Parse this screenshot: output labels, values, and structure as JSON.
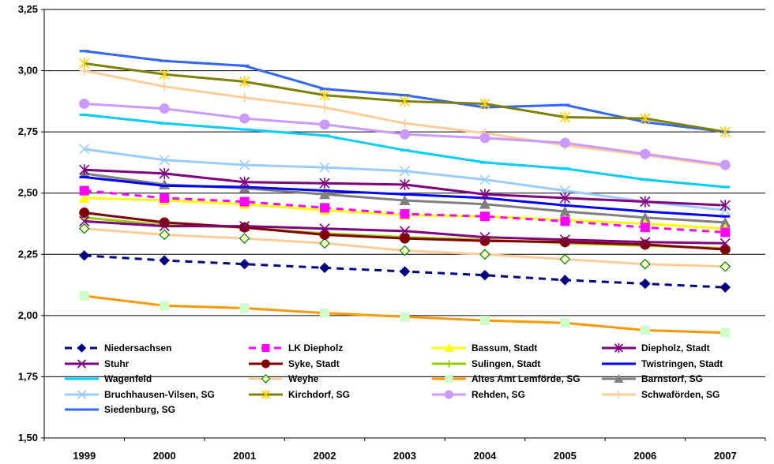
{
  "chart_data": {
    "type": "line",
    "title": "",
    "xlabel": "",
    "ylabel": "",
    "categories": [
      "1999",
      "2000",
      "2001",
      "2002",
      "2003",
      "2004",
      "2005",
      "2006",
      "2007"
    ],
    "ylim": [
      1.5,
      3.25
    ],
    "yticks": [
      1.5,
      1.75,
      2.0,
      2.25,
      2.5,
      2.75,
      3.0,
      3.25
    ],
    "ytick_labels": [
      "1,50",
      "1,75",
      "2,00",
      "2,25",
      "2,50",
      "2,75",
      "3,00",
      "3,25"
    ],
    "grid": "horizontal",
    "legend_position": "inside-bottom",
    "series": [
      {
        "name": "Niedersachsen",
        "color": "#000080",
        "marker": "diamond",
        "dash": true,
        "values": [
          2.245,
          2.225,
          2.21,
          2.195,
          2.18,
          2.165,
          2.145,
          2.13,
          2.115
        ]
      },
      {
        "name": "LK Diepholz",
        "color": "#ff00ff",
        "marker": "square",
        "dash": true,
        "values": [
          2.51,
          2.48,
          2.465,
          2.44,
          2.415,
          2.405,
          2.385,
          2.36,
          2.34
        ]
      },
      {
        "name": "Bassum, Stadt",
        "color": "#ffff00",
        "marker": "triangle",
        "values": [
          2.48,
          2.47,
          2.455,
          2.43,
          2.41,
          2.405,
          2.39,
          2.375,
          2.355
        ]
      },
      {
        "name": "Diepholz, Stadt",
        "color": "#800080",
        "marker": "star",
        "values": [
          2.595,
          2.58,
          2.545,
          2.54,
          2.535,
          2.495,
          2.48,
          2.465,
          2.45
        ]
      },
      {
        "name": "Stuhr",
        "color": "#800080",
        "marker": "x",
        "values": [
          2.385,
          2.365,
          2.365,
          2.355,
          2.345,
          2.32,
          2.31,
          2.3,
          2.295
        ]
      },
      {
        "name": "Syke, Stadt",
        "color": "#800000",
        "marker": "circle",
        "values": [
          2.42,
          2.38,
          2.36,
          2.33,
          2.315,
          2.305,
          2.3,
          2.29,
          2.27
        ]
      },
      {
        "name": "Sulingen, Stadt",
        "color": "#99cc00",
        "marker": "plus",
        "values": [
          2.4,
          2.37,
          2.36,
          2.335,
          2.32,
          2.31,
          2.295,
          2.285,
          2.275
        ]
      },
      {
        "name": "Twistringen, Stadt",
        "color": "#0000ff",
        "marker": "dash",
        "values": [
          2.565,
          2.53,
          2.525,
          2.51,
          2.495,
          2.48,
          2.45,
          2.425,
          2.405
        ]
      },
      {
        "name": "Wagenfeld",
        "color": "#00ccff",
        "marker": "dash",
        "values": [
          2.82,
          2.785,
          2.76,
          2.735,
          2.675,
          2.625,
          2.6,
          2.555,
          2.525
        ]
      },
      {
        "name": "Weyhe",
        "color": "#ffcc99",
        "marker": "diamond-open",
        "values": [
          2.355,
          2.33,
          2.315,
          2.295,
          2.265,
          2.25,
          2.23,
          2.21,
          2.2
        ]
      },
      {
        "name": "Altes Amt Lemförde, SG",
        "color": "#ff9900",
        "marker": "square",
        "marker_color": "#ccffcc",
        "values": [
          2.08,
          2.04,
          2.03,
          2.01,
          1.995,
          1.98,
          1.97,
          1.94,
          1.93
        ]
      },
      {
        "name": "Barnstorf, SG",
        "color": "#808080",
        "marker": "triangle",
        "values": [
          2.58,
          2.535,
          2.52,
          2.495,
          2.47,
          2.455,
          2.425,
          2.4,
          2.38
        ]
      },
      {
        "name": "Bruchhausen-Vilsen, SG",
        "color": "#99ccff",
        "marker": "x",
        "values": [
          2.68,
          2.635,
          2.615,
          2.605,
          2.59,
          2.555,
          2.51,
          2.465,
          2.43
        ]
      },
      {
        "name": "Kirchdorf, SG",
        "color": "#808000",
        "marker": "star",
        "marker_color": "#ffcc00",
        "values": [
          3.03,
          2.985,
          2.955,
          2.9,
          2.875,
          2.865,
          2.81,
          2.805,
          2.75
        ]
      },
      {
        "name": "Rehden, SG",
        "color": "#cc99ff",
        "marker": "circle",
        "values": [
          2.865,
          2.845,
          2.805,
          2.78,
          2.74,
          2.725,
          2.705,
          2.66,
          2.615
        ]
      },
      {
        "name": "Schwaförden, SG",
        "color": "#ffcc99",
        "marker": "plus",
        "values": [
          3.0,
          2.935,
          2.89,
          2.85,
          2.785,
          2.745,
          2.695,
          2.655,
          2.61
        ]
      },
      {
        "name": "Siedenburg, SG",
        "color": "#3366ff",
        "marker": "dash",
        "values": [
          3.08,
          3.04,
          3.02,
          2.925,
          2.9,
          2.85,
          2.86,
          2.79,
          2.75
        ]
      }
    ]
  }
}
